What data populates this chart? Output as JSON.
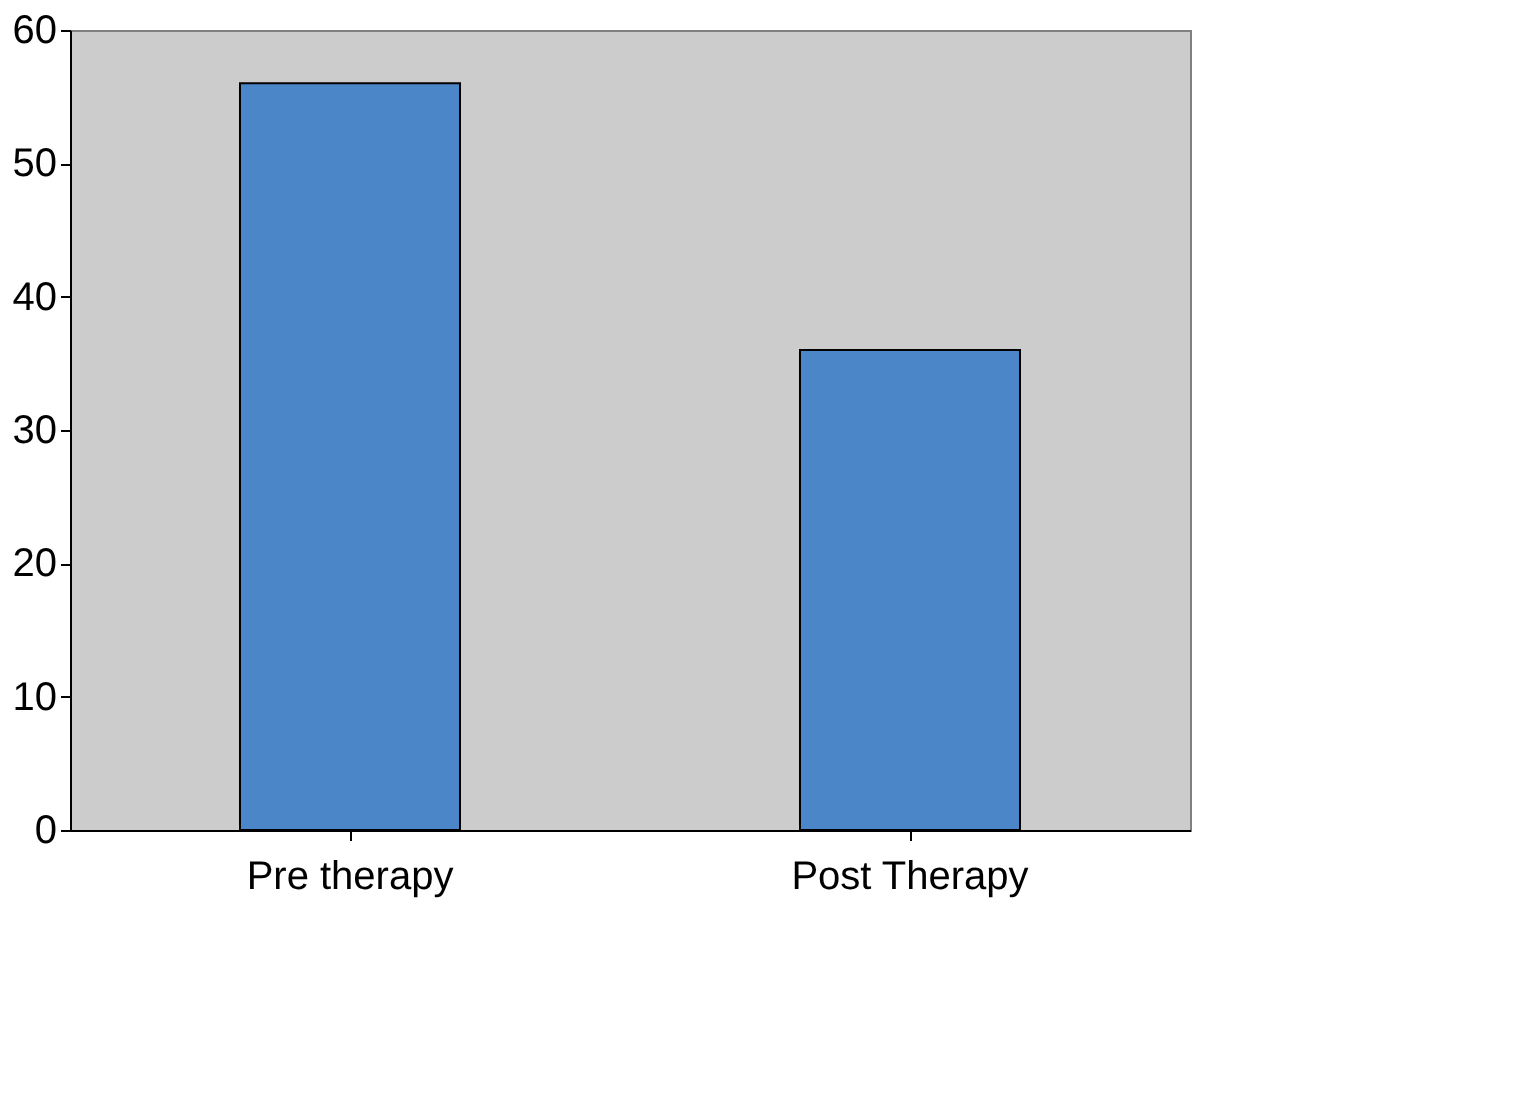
{
  "chart_data": {
    "type": "bar",
    "categories": [
      "Pre therapy",
      "Post Therapy"
    ],
    "values": [
      56,
      36
    ],
    "color": "#4a86c8",
    "ylim": [
      0,
      60
    ],
    "yticks": [
      0,
      10,
      20,
      30,
      40,
      50,
      60
    ],
    "grid": false
  }
}
